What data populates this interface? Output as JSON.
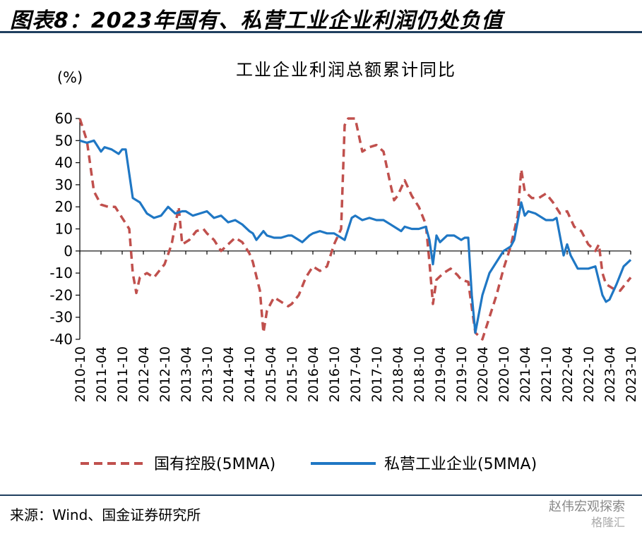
{
  "figure_title": "图表8：2023年国有、私营工业企业利润仍处负值",
  "source": "来源：Wind、国金证券研究所",
  "watermark": {
    "line1": "赵伟宏观探索",
    "line2": "格隆汇"
  },
  "chart_data": {
    "type": "line",
    "title": "工业企业利润总额累计同比",
    "ylabel": "(%)",
    "ylim": [
      -40,
      60
    ],
    "yticks": [
      60,
      50,
      40,
      30,
      20,
      10,
      0,
      -10,
      -20,
      -30,
      -40
    ],
    "xlim": [
      "2010-10",
      "2023-10"
    ],
    "xticks": [
      "2010-10",
      "2011-04",
      "2011-10",
      "2012-04",
      "2012-10",
      "2013-04",
      "2013-10",
      "2014-04",
      "2014-10",
      "2015-04",
      "2015-10",
      "2016-04",
      "2016-10",
      "2017-04",
      "2017-10",
      "2018-04",
      "2018-10",
      "2019-04",
      "2019-10",
      "2020-04",
      "2020-10",
      "2021-04",
      "2021-10",
      "2022-04",
      "2022-10",
      "2023-04",
      "2023-10"
    ],
    "grid": false,
    "legend": "bottom",
    "series": [
      {
        "name": "国有控股(5MMA)",
        "style": "dashed",
        "color": "#c0504d",
        "points": [
          [
            "2010-10",
            60
          ],
          [
            "2010-12",
            50
          ],
          [
            "2011-02",
            27
          ],
          [
            "2011-04",
            21
          ],
          [
            "2011-06",
            20
          ],
          [
            "2011-08",
            20
          ],
          [
            "2011-10",
            15
          ],
          [
            "2011-12",
            10
          ],
          [
            "2012-01",
            -10
          ],
          [
            "2012-02",
            -19
          ],
          [
            "2012-03",
            -12
          ],
          [
            "2012-05",
            -10
          ],
          [
            "2012-07",
            -12
          ],
          [
            "2012-09",
            -8
          ],
          [
            "2012-10",
            -6
          ],
          [
            "2012-12",
            3
          ],
          [
            "2013-02",
            20
          ],
          [
            "2013-03",
            3
          ],
          [
            "2013-05",
            5
          ],
          [
            "2013-07",
            9
          ],
          [
            "2013-09",
            10
          ],
          [
            "2013-10",
            8
          ],
          [
            "2013-12",
            5
          ],
          [
            "2014-02",
            0
          ],
          [
            "2014-04",
            3
          ],
          [
            "2014-06",
            6
          ],
          [
            "2014-08",
            4
          ],
          [
            "2014-10",
            -1
          ],
          [
            "2014-11",
            -5
          ],
          [
            "2015-01",
            -18
          ],
          [
            "2015-02",
            -37
          ],
          [
            "2015-03",
            -27
          ],
          [
            "2015-05",
            -21
          ],
          [
            "2015-07",
            -23
          ],
          [
            "2015-09",
            -25
          ],
          [
            "2015-10",
            -24
          ],
          [
            "2015-12",
            -20
          ],
          [
            "2016-02",
            -12
          ],
          [
            "2016-04",
            -7
          ],
          [
            "2016-06",
            -9
          ],
          [
            "2016-08",
            -7
          ],
          [
            "2016-10",
            3
          ],
          [
            "2016-12",
            10
          ],
          [
            "2017-01",
            57
          ],
          [
            "2017-02",
            60
          ],
          [
            "2017-04",
            60
          ],
          [
            "2017-06",
            45
          ],
          [
            "2017-08",
            47
          ],
          [
            "2017-10",
            48
          ],
          [
            "2017-12",
            45
          ],
          [
            "2018-02",
            30
          ],
          [
            "2018-03",
            23
          ],
          [
            "2018-04",
            25
          ],
          [
            "2018-06",
            32
          ],
          [
            "2018-08",
            25
          ],
          [
            "2018-10",
            20
          ],
          [
            "2018-12",
            12
          ],
          [
            "2019-01",
            -5
          ],
          [
            "2019-02",
            -24
          ],
          [
            "2019-03",
            -13
          ],
          [
            "2019-05",
            -10
          ],
          [
            "2019-07",
            -8
          ],
          [
            "2019-09",
            -11
          ],
          [
            "2019-10",
            -13
          ],
          [
            "2019-12",
            -14
          ],
          [
            "2020-02",
            -37
          ],
          [
            "2020-04",
            -40
          ],
          [
            "2020-06",
            -30
          ],
          [
            "2020-08",
            -20
          ],
          [
            "2020-10",
            -8
          ],
          [
            "2020-12",
            2
          ],
          [
            "2021-02",
            16
          ],
          [
            "2021-03",
            37
          ],
          [
            "2021-04",
            27
          ],
          [
            "2021-06",
            24
          ],
          [
            "2021-08",
            24
          ],
          [
            "2021-10",
            26
          ],
          [
            "2021-12",
            22
          ],
          [
            "2022-02",
            17
          ],
          [
            "2022-04",
            18
          ],
          [
            "2022-06",
            11
          ],
          [
            "2022-08",
            9
          ],
          [
            "2022-10",
            3
          ],
          [
            "2022-12",
            0
          ],
          [
            "2023-01",
            3
          ],
          [
            "2023-02",
            -10
          ],
          [
            "2023-03",
            -15
          ],
          [
            "2023-05",
            -17
          ],
          [
            "2023-07",
            -18
          ],
          [
            "2023-09",
            -14
          ],
          [
            "2023-10",
            -12
          ]
        ]
      },
      {
        "name": "私营工业企业(5MMA)",
        "style": "solid",
        "color": "#1f77c4",
        "points": [
          [
            "2010-10",
            50
          ],
          [
            "2010-12",
            49
          ],
          [
            "2011-02",
            50
          ],
          [
            "2011-04",
            45
          ],
          [
            "2011-05",
            47
          ],
          [
            "2011-07",
            46
          ],
          [
            "2011-09",
            44
          ],
          [
            "2011-10",
            46
          ],
          [
            "2011-11",
            46
          ],
          [
            "2012-01",
            24
          ],
          [
            "2012-03",
            22
          ],
          [
            "2012-05",
            17
          ],
          [
            "2012-07",
            15
          ],
          [
            "2012-09",
            16
          ],
          [
            "2012-10",
            18
          ],
          [
            "2012-11",
            20
          ],
          [
            "2013-01",
            17
          ],
          [
            "2013-03",
            18
          ],
          [
            "2013-04",
            18
          ],
          [
            "2013-06",
            16
          ],
          [
            "2013-08",
            17
          ],
          [
            "2013-10",
            18
          ],
          [
            "2013-12",
            15
          ],
          [
            "2014-02",
            16
          ],
          [
            "2014-04",
            13
          ],
          [
            "2014-06",
            14
          ],
          [
            "2014-08",
            12
          ],
          [
            "2014-10",
            9
          ],
          [
            "2014-11",
            8
          ],
          [
            "2014-12",
            5
          ],
          [
            "2015-02",
            9
          ],
          [
            "2015-03",
            7
          ],
          [
            "2015-05",
            6
          ],
          [
            "2015-07",
            6
          ],
          [
            "2015-09",
            7
          ],
          [
            "2015-10",
            7
          ],
          [
            "2015-12",
            5
          ],
          [
            "2016-01",
            4
          ],
          [
            "2016-03",
            7
          ],
          [
            "2016-04",
            8
          ],
          [
            "2016-06",
            9
          ],
          [
            "2016-08",
            8
          ],
          [
            "2016-10",
            8
          ],
          [
            "2016-12",
            6
          ],
          [
            "2017-01",
            5
          ],
          [
            "2017-03",
            15
          ],
          [
            "2017-04",
            16
          ],
          [
            "2017-06",
            14
          ],
          [
            "2017-08",
            15
          ],
          [
            "2017-10",
            14
          ],
          [
            "2017-12",
            14
          ],
          [
            "2018-02",
            12
          ],
          [
            "2018-04",
            10
          ],
          [
            "2018-05",
            9
          ],
          [
            "2018-06",
            11
          ],
          [
            "2018-08",
            10
          ],
          [
            "2018-10",
            10
          ],
          [
            "2018-12",
            11
          ],
          [
            "2019-01",
            5
          ],
          [
            "2019-02",
            -6
          ],
          [
            "2019-03",
            7
          ],
          [
            "2019-04",
            4
          ],
          [
            "2019-06",
            7
          ],
          [
            "2019-08",
            7
          ],
          [
            "2019-10",
            5
          ],
          [
            "2019-11",
            6
          ],
          [
            "2019-12",
            6
          ],
          [
            "2020-01",
            -20
          ],
          [
            "2020-02",
            -37
          ],
          [
            "2020-04",
            -20
          ],
          [
            "2020-06",
            -10
          ],
          [
            "2020-08",
            -5
          ],
          [
            "2020-10",
            0
          ],
          [
            "2020-12",
            2
          ],
          [
            "2021-01",
            5
          ],
          [
            "2021-03",
            22
          ],
          [
            "2021-04",
            16
          ],
          [
            "2021-05",
            18
          ],
          [
            "2021-07",
            17
          ],
          [
            "2021-09",
            15
          ],
          [
            "2021-10",
            14
          ],
          [
            "2021-12",
            14
          ],
          [
            "2022-01",
            15
          ],
          [
            "2022-03",
            -2
          ],
          [
            "2022-04",
            3
          ],
          [
            "2022-05",
            -2
          ],
          [
            "2022-07",
            -8
          ],
          [
            "2022-09",
            -8
          ],
          [
            "2022-10",
            -8
          ],
          [
            "2022-12",
            -7
          ],
          [
            "2023-02",
            -20
          ],
          [
            "2023-03",
            -23
          ],
          [
            "2023-04",
            -22
          ],
          [
            "2023-06",
            -15
          ],
          [
            "2023-08",
            -7
          ],
          [
            "2023-10",
            -4
          ]
        ]
      }
    ]
  }
}
